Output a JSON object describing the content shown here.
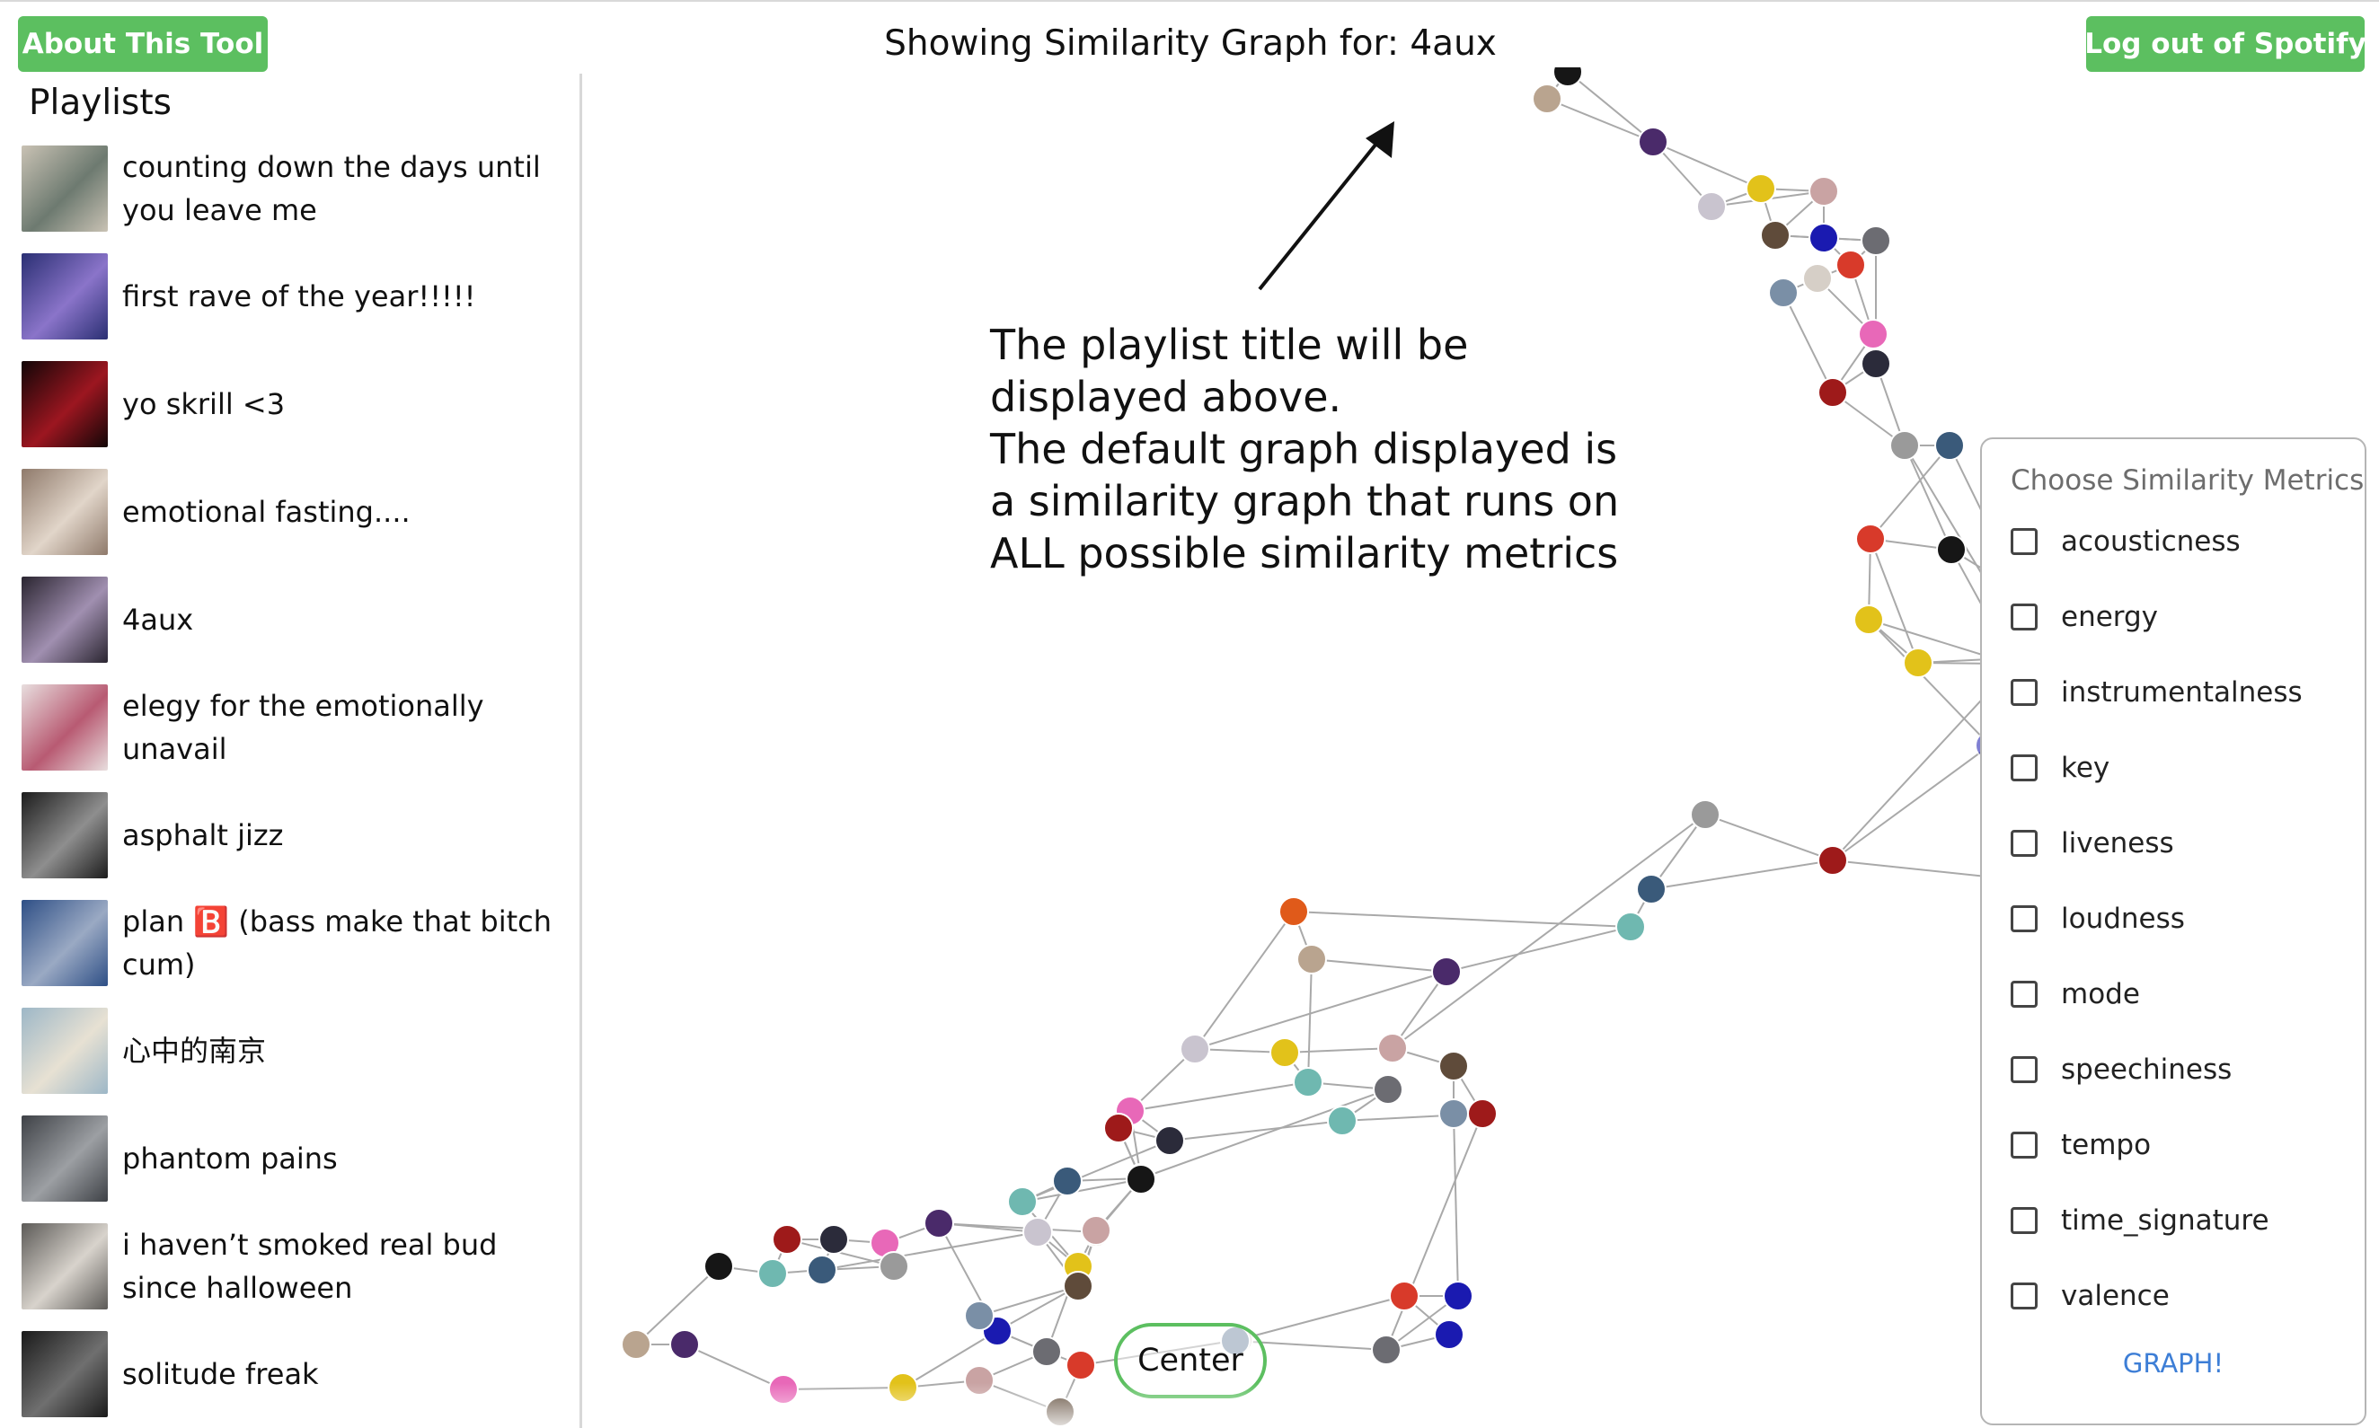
{
  "header": {
    "about_label": "About This Tool",
    "logout_label": "Log out of Spotify",
    "title": "Showing Similarity Graph for: 4aux"
  },
  "sidebar": {
    "heading": "Playlists",
    "items": [
      {
        "label": "counting down the days until you leave me",
        "thumb": [
          "#c9c2b4",
          "#6d7a70"
        ]
      },
      {
        "label": "first rave of the year!!!!!",
        "thumb": [
          "#2a2f73",
          "#8a74c9"
        ]
      },
      {
        "label": "yo skrill <3",
        "thumb": [
          "#120607",
          "#9c1620"
        ]
      },
      {
        "label": "emotional fasting....",
        "thumb": [
          "#8f7a6b",
          "#e1d5c9"
        ]
      },
      {
        "label": "4aux",
        "thumb": [
          "#2a2530",
          "#a08fb0"
        ]
      },
      {
        "label": "elegy for the emotionally unavail",
        "thumb": [
          "#e8dede",
          "#b85a72"
        ]
      },
      {
        "label": "asphalt jizz",
        "thumb": [
          "#1c1c1c",
          "#8e8e8e"
        ]
      },
      {
        "label": "plan 🅱️ (bass make that bitch cum)",
        "thumb": [
          "#2e4f86",
          "#9aa9c3"
        ]
      },
      {
        "label": "心中的南京",
        "thumb": [
          "#9db7c7",
          "#e7e1d3"
        ]
      },
      {
        "label": "phantom pains",
        "thumb": [
          "#3e4146",
          "#9c9fa3"
        ]
      },
      {
        "label": "i haven’t smoked real bud since halloween",
        "thumb": [
          "#5c5a57",
          "#d8d3cc"
        ]
      },
      {
        "label": "solitude freak",
        "thumb": [
          "#1a1a1a",
          "#6f6f6f"
        ]
      }
    ]
  },
  "annotation": {
    "lines": [
      "The playlist title will be",
      "displayed above.",
      "The default graph displayed is",
      "a similarity graph that runs on",
      "ALL possible similarity metrics"
    ]
  },
  "metrics_panel": {
    "title": "Choose Similarity Metrics",
    "metrics": [
      "acousticness",
      "energy",
      "instrumentalness",
      "key",
      "liveness",
      "loudness",
      "mode",
      "speechiness",
      "tempo",
      "time_signature",
      "valence"
    ],
    "submit_label": "GRAPH!"
  },
  "center_label": "Center",
  "graph": {
    "edge_color": "#a9a9a9",
    "node_colors": [
      "#161616",
      "#2b2b3a",
      "#6c6c72",
      "#c9c4cf",
      "#3a5a7a",
      "#7a8fa6",
      "#5f4b3a",
      "#b9a48f",
      "#9e1a1a",
      "#d83a2a",
      "#e2c21a",
      "#6fb8b0",
      "#e868b8",
      "#1a1ab0",
      "#4a2a6a",
      "#9a9a9a",
      "#d6cfc7",
      "#c9a3a3"
    ]
  }
}
